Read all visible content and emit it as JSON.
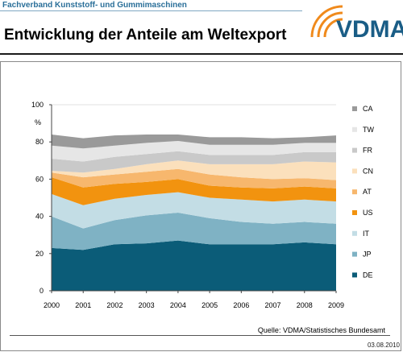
{
  "header": {
    "organization": "Fachverband Kunststoff- und Gummimaschinen",
    "title": "Entwicklung der Anteile am Weltexport",
    "logo_text": "VDMA"
  },
  "footer": {
    "source": "Quelle: VDMA/Statistisches Bundesamt",
    "date": "03.08.2010"
  },
  "colors": {
    "brand": "#1a5d86",
    "logo_arcs": "#f08a1c"
  },
  "chart_data": {
    "type": "area",
    "stacked": true,
    "title": "",
    "xlabel": "",
    "ylabel": "%",
    "ylim": [
      0,
      100
    ],
    "yticks": [
      0,
      20,
      40,
      60,
      80,
      100
    ],
    "x": [
      "2000",
      "2001",
      "2002",
      "2003",
      "2004",
      "2005",
      "2006",
      "2007",
      "2008",
      "2009"
    ],
    "legend_position": "right",
    "series": [
      {
        "name": "DE",
        "color": "#0b5c78",
        "values": [
          23,
          22,
          25,
          25.5,
          27,
          25,
          25,
          25,
          26,
          25
        ]
      },
      {
        "name": "JP",
        "color": "#7fb2c4",
        "values": [
          17,
          11.5,
          13,
          15,
          15,
          14,
          12,
          11,
          11,
          11
        ]
      },
      {
        "name": "IT",
        "color": "#c3dde5",
        "values": [
          12,
          12.5,
          11.5,
          11,
          11,
          11,
          12,
          12,
          12,
          12
        ]
      },
      {
        "name": "US",
        "color": "#f2930f",
        "values": [
          9,
          9.5,
          8,
          7,
          7,
          6.5,
          6.5,
          7,
          7,
          7
        ]
      },
      {
        "name": "AT",
        "color": "#f7b76d",
        "values": [
          2.5,
          5.5,
          5,
          5.5,
          5.5,
          6,
          5.5,
          5,
          4.5,
          4.5
        ]
      },
      {
        "name": "CN",
        "color": "#fbe0bc",
        "values": [
          1,
          2.5,
          3,
          4,
          4.5,
          5.5,
          7,
          8,
          9,
          9.5
        ]
      },
      {
        "name": "FR",
        "color": "#c9c9c9",
        "values": [
          6.5,
          6,
          6.5,
          5.5,
          5,
          5,
          5,
          5,
          5,
          5.5
        ]
      },
      {
        "name": "TW",
        "color": "#e6e6e6",
        "values": [
          7,
          7,
          6,
          6,
          5.5,
          5.5,
          5.5,
          5.5,
          5,
          5
        ]
      },
      {
        "name": "CA",
        "color": "#9a9a9a",
        "values": [
          6,
          5.5,
          5.5,
          4.5,
          3.5,
          4,
          4,
          3.5,
          3,
          4
        ]
      }
    ]
  }
}
